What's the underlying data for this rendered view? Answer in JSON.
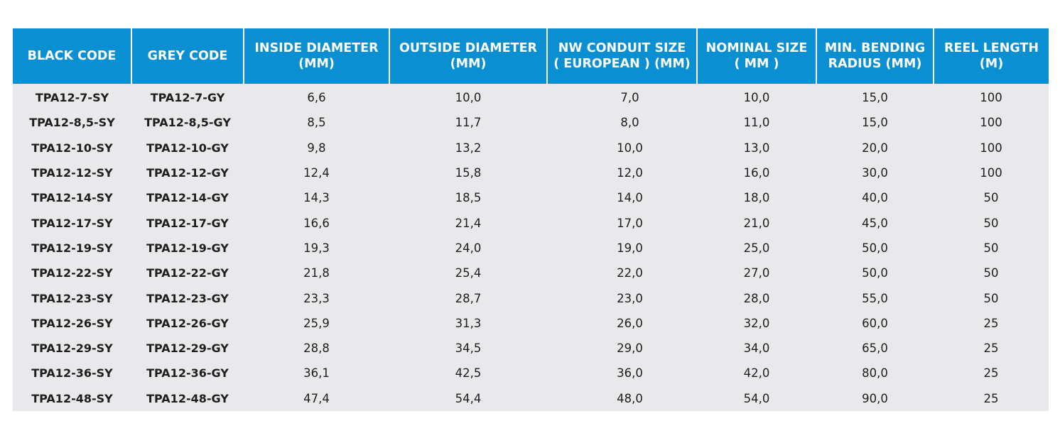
{
  "columns": [
    {
      "line1": "BLACK CODE",
      "line2": ""
    },
    {
      "line1": "GREY CODE",
      "line2": ""
    },
    {
      "line1": "INSIDE DIAMETER",
      "line2": "(MM)"
    },
    {
      "line1": "OUTSIDE DIAMETER",
      "line2": "(MM)"
    },
    {
      "line1": "NW CONDUIT SIZE",
      "line2": "( EUROPEAN ) (MM)"
    },
    {
      "line1": "NOMINAL SIZE",
      "line2": "( MM )"
    },
    {
      "line1": "MIN. BENDING",
      "line2": "RADIUS (MM)"
    },
    {
      "line1": "REEL LENGTH",
      "line2": "(M)"
    }
  ],
  "rows": [
    [
      "TPA12-7-SY",
      "TPA12-7-GY",
      "6,6",
      "10,0",
      "7,0",
      "10,0",
      "15,0",
      "100"
    ],
    [
      "TPA12-8,5-SY",
      "TPA12-8,5-GY",
      "8,5",
      "11,7",
      "8,0",
      "11,0",
      "15,0",
      "100"
    ],
    [
      "TPA12-10-SY",
      "TPA12-10-GY",
      "9,8",
      "13,2",
      "10,0",
      "13,0",
      "20,0",
      "100"
    ],
    [
      "TPA12-12-SY",
      "TPA12-12-GY",
      "12,4",
      "15,8",
      "12,0",
      "16,0",
      "30,0",
      "100"
    ],
    [
      "TPA12-14-SY",
      "TPA12-14-GY",
      "14,3",
      "18,5",
      "14,0",
      "18,0",
      "40,0",
      "50"
    ],
    [
      "TPA12-17-SY",
      "TPA12-17-GY",
      "16,6",
      "21,4",
      "17,0",
      "21,0",
      "45,0",
      "50"
    ],
    [
      "TPA12-19-SY",
      "TPA12-19-GY",
      "19,3",
      "24,0",
      "19,0",
      "25,0",
      "50,0",
      "50"
    ],
    [
      "TPA12-22-SY",
      "TPA12-22-GY",
      "21,8",
      "25,4",
      "22,0",
      "27,0",
      "50,0",
      "50"
    ],
    [
      "TPA12-23-SY",
      "TPA12-23-GY",
      "23,3",
      "28,7",
      "23,0",
      "28,0",
      "55,0",
      "50"
    ],
    [
      "TPA12-26-SY",
      "TPA12-26-GY",
      "25,9",
      "31,3",
      "26,0",
      "32,0",
      "60,0",
      "25"
    ],
    [
      "TPA12-29-SY",
      "TPA12-29-GY",
      "28,8",
      "34,5",
      "29,0",
      "34,0",
      "65,0",
      "25"
    ],
    [
      "TPA12-36-SY",
      "TPA12-36-GY",
      "36,1",
      "42,5",
      "36,0",
      "42,0",
      "80,0",
      "25"
    ],
    [
      "TPA12-48-SY",
      "TPA12-48-GY",
      "47,4",
      "54,4",
      "48,0",
      "54,0",
      "90,0",
      "25"
    ]
  ],
  "colors": {
    "header_bg": "#0b8fd3",
    "header_text": "#ffffff",
    "body_bg": "#e9e9eb",
    "body_text": "#1e1e1e"
  }
}
